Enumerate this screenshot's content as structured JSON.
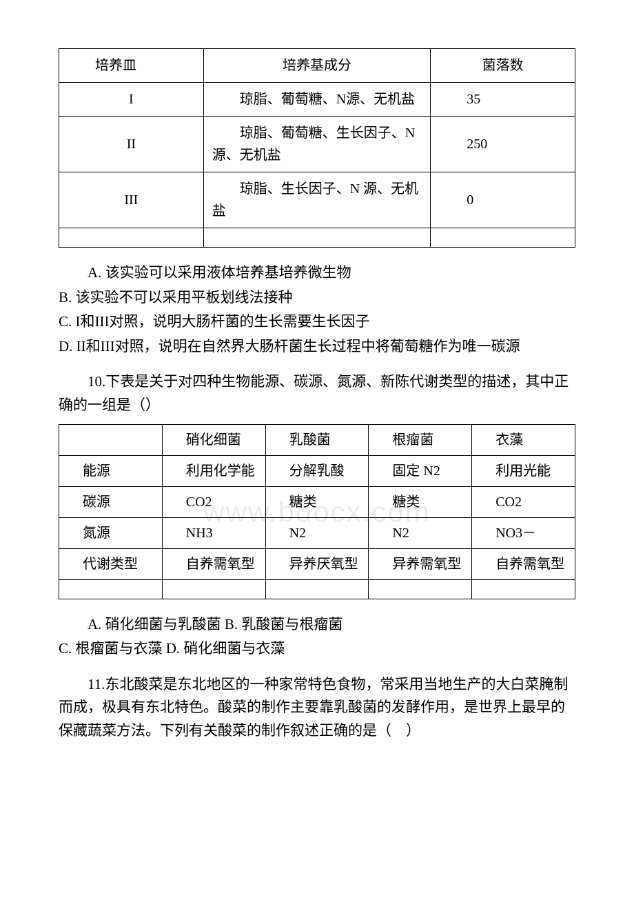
{
  "table1": {
    "headers": [
      "培养皿",
      "培养基成分",
      "菌落数"
    ],
    "rows": [
      [
        "I",
        "琼脂、葡萄糖、N源、无机盐",
        "35"
      ],
      [
        "II",
        "琼脂、葡萄糖、生长因子、N 源、无机盐",
        "250"
      ],
      [
        "III",
        "琼脂、生长因子、N 源、无机盐",
        "0"
      ]
    ]
  },
  "q9_options": {
    "a": "A. 该实验可以采用液体培养基培养微生物",
    "b": "B. 该实验不可以采用平板划线法接种",
    "c": "C. I和III对照，说明大肠杆菌的生长需要生长因子",
    "d": "D. II和III对照，说明在自然界大肠杆菌生长过程中将葡萄糖作为唯一碳源"
  },
  "q10": {
    "text": "10.下表是关于对四种生物能源、碳源、氮源、新陈代谢类型的描述，其中正确的一组是（）"
  },
  "table2": {
    "header_row": [
      "",
      "硝化细菌",
      "乳酸菌",
      "根瘤菌",
      "衣藻"
    ],
    "rows": [
      [
        "能源",
        "利用化学能",
        "分解乳酸",
        "固定 N2",
        "利用光能"
      ],
      [
        "碳源",
        "CO2",
        "糖类",
        "糖类",
        "CO2"
      ],
      [
        "氮源",
        "NH3",
        "N2",
        "N2",
        "NO3－"
      ],
      [
        "代谢类型",
        "自养需氧型",
        "异养厌氧型",
        "异养需氧型",
        "自养需氧型"
      ]
    ]
  },
  "q10_options": {
    "ab": "A. 硝化细菌与乳酸菌 B. 乳酸菌与根瘤菌",
    "cd": "C. 根瘤菌与衣藻 D. 硝化细菌与衣藻"
  },
  "q11": {
    "text": "11.东北酸菜是东北地区的一种家常特色食物，常采用当地生产的大白菜腌制而成，极具有东北特色。酸菜的制作主要靠乳酸菌的发酵作用，是世界上最早的保藏蔬菜方法。下列有关酸菜的制作叙述正确的是（　）"
  }
}
